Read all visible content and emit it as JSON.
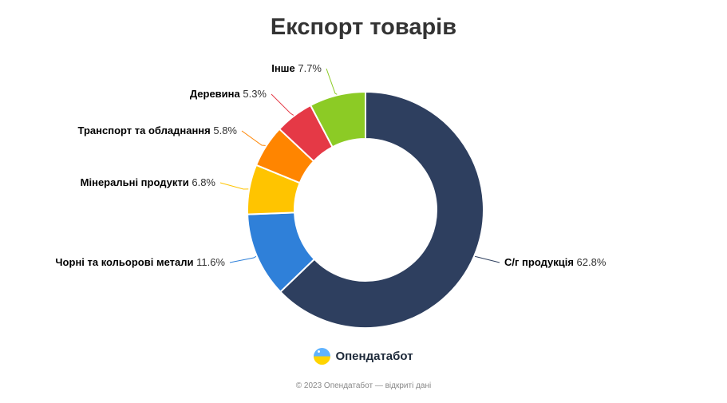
{
  "chart_data": {
    "type": "pie",
    "variant": "donut",
    "title": "Експорт товарів",
    "slices": [
      {
        "name": "С/г продукція",
        "value": 62.8,
        "label": "62.8%",
        "color": "#2e3f5f"
      },
      {
        "name": "Чорні та кольорові метали",
        "value": 11.6,
        "label": "11.6%",
        "color": "#2f80d9"
      },
      {
        "name": "Мінеральні продукти",
        "value": 6.8,
        "label": "6.8%",
        "color": "#ffc400"
      },
      {
        "name": "Транспорт та обладнання",
        "value": 5.8,
        "label": "5.8%",
        "color": "#ff8500"
      },
      {
        "name": "Деревина",
        "value": 5.3,
        "label": "5.3%",
        "color": "#e53946"
      },
      {
        "name": "Інше",
        "value": 7.7,
        "label": "7.7%",
        "color": "#8ccb25"
      }
    ]
  },
  "brand": {
    "name": "Опендатабот",
    "logo_icon": "opendatabot-logo-icon"
  },
  "footer": "© 2023 Опендатабот — відкриті дані"
}
